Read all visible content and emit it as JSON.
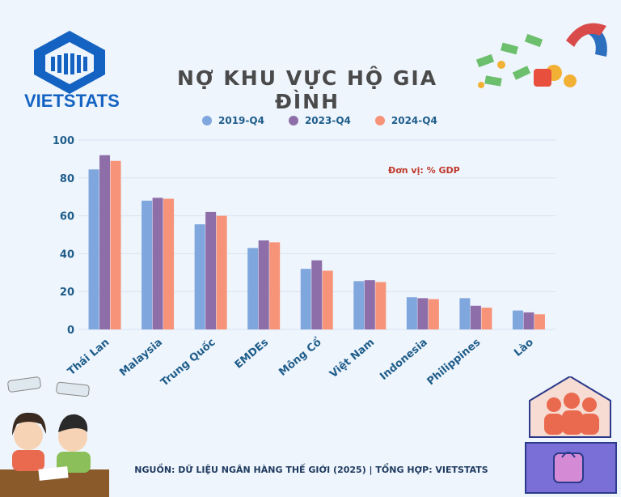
{
  "brand": {
    "name": "VIETSTATS"
  },
  "title": "NỢ KHU VỰC HỘ GIA ĐÌNH",
  "unit_note": "Đơn vị: % GDP",
  "source": "NGUỒN: DỮ LIỆU NGÂN HÀNG THẾ GIỚI (2025) | TỔNG HỢP: VIETSTATS",
  "colors": {
    "s1": "#7fa6dd",
    "s2": "#8e6ea8",
    "s3": "#f79379",
    "axis_text": "#1f5d8a"
  },
  "chart_data": {
    "type": "bar",
    "categories": [
      "Thái Lan",
      "Malaysia",
      "Trung Quốc",
      "EMDEs",
      "Mông Cổ",
      "Việt Nam",
      "Indonesia",
      "Philippines",
      "Lào"
    ],
    "series": [
      {
        "name": "2019-Q4",
        "values": [
          84.5,
          68,
          55.5,
          43,
          32,
          25.5,
          17,
          16.5,
          10
        ]
      },
      {
        "name": "2023-Q4",
        "values": [
          92,
          69.5,
          62,
          47,
          36.5,
          26,
          16.5,
          12.5,
          9
        ]
      },
      {
        "name": "2024-Q4",
        "values": [
          89,
          69,
          60,
          46,
          31,
          25,
          16,
          11.5,
          8
        ]
      }
    ],
    "yticks": [
      0,
      20,
      40,
      60,
      80,
      100
    ],
    "ylim": [
      0,
      100
    ],
    "grid": true,
    "legend": "top-center"
  }
}
